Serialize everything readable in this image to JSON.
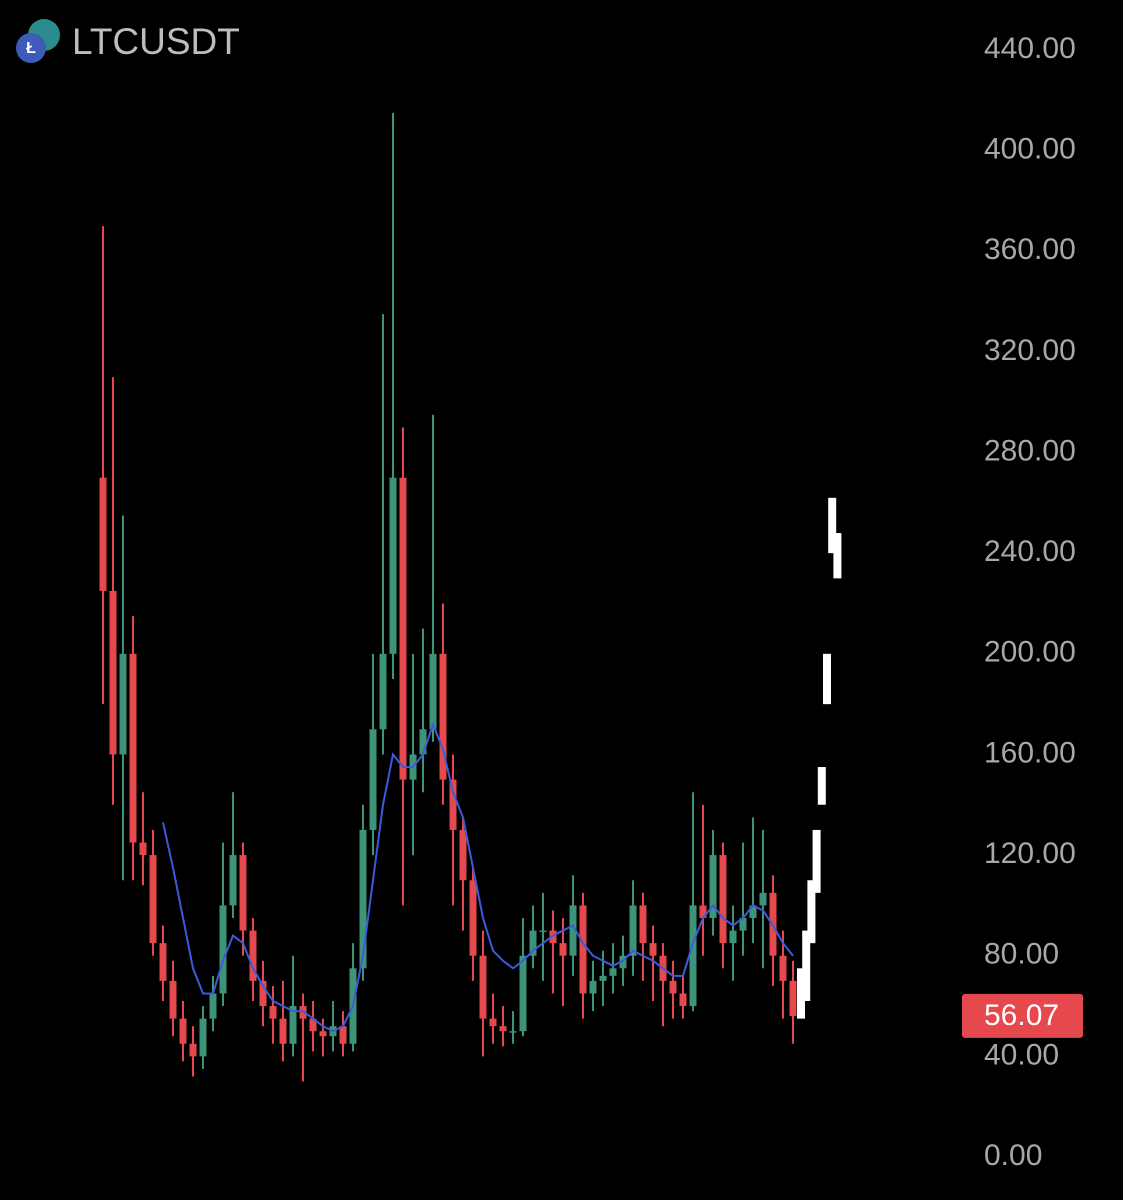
{
  "chart_data": {
    "type": "candlestick",
    "title": "LTCUSDT",
    "ylim": [
      0,
      440
    ],
    "yticks": [
      {
        "value": 0,
        "label": "0.00"
      },
      {
        "value": 40,
        "label": "40.00"
      },
      {
        "value": 80,
        "label": "80.00"
      },
      {
        "value": 120,
        "label": "120.00"
      },
      {
        "value": 160,
        "label": "160.00"
      },
      {
        "value": 200,
        "label": "200.00"
      },
      {
        "value": 240,
        "label": "240.00"
      },
      {
        "value": 280,
        "label": "280.00"
      },
      {
        "value": 320,
        "label": "320.00"
      },
      {
        "value": 360,
        "label": "360.00"
      },
      {
        "value": 400,
        "label": "400.00"
      },
      {
        "value": 440,
        "label": "440.00"
      }
    ],
    "up_color": "#3e9478",
    "down_color": "#e5484d",
    "open": [
      270,
      225,
      160,
      200,
      125,
      120,
      85,
      70,
      55,
      45,
      40,
      55,
      65,
      100,
      120,
      90,
      70,
      60,
      55,
      45,
      60,
      55,
      50,
      48,
      52,
      45,
      75,
      130,
      170,
      200,
      270,
      150,
      160,
      170,
      200,
      150,
      130,
      110,
      80,
      55,
      52,
      50,
      50,
      80,
      90,
      90,
      85,
      80,
      100,
      65,
      70,
      72,
      75,
      80,
      100,
      85,
      80,
      70,
      65,
      60,
      100,
      95,
      120,
      85,
      90,
      95,
      100,
      105,
      80,
      70
    ],
    "high": [
      370,
      310,
      255,
      215,
      145,
      130,
      92,
      78,
      62,
      52,
      60,
      72,
      125,
      145,
      125,
      95,
      78,
      68,
      70,
      80,
      65,
      62,
      55,
      62,
      58,
      85,
      140,
      200,
      335,
      415,
      290,
      200,
      210,
      295,
      220,
      160,
      135,
      115,
      90,
      65,
      60,
      58,
      95,
      100,
      105,
      98,
      95,
      112,
      105,
      78,
      82,
      85,
      88,
      110,
      105,
      92,
      85,
      78,
      72,
      145,
      140,
      130,
      125,
      100,
      125,
      135,
      130,
      112,
      90,
      78
    ],
    "low": [
      180,
      140,
      110,
      110,
      108,
      80,
      62,
      48,
      38,
      32,
      35,
      50,
      60,
      95,
      80,
      62,
      52,
      45,
      38,
      40,
      30,
      42,
      40,
      42,
      40,
      42,
      70,
      120,
      160,
      190,
      100,
      120,
      145,
      165,
      140,
      100,
      90,
      70,
      40,
      45,
      44,
      45,
      48,
      75,
      70,
      65,
      60,
      72,
      55,
      58,
      60,
      65,
      68,
      72,
      70,
      62,
      52,
      55,
      55,
      58,
      80,
      88,
      75,
      70,
      80,
      85,
      75,
      68,
      55,
      45
    ],
    "close": [
      225,
      160,
      200,
      125,
      120,
      85,
      70,
      55,
      45,
      40,
      55,
      65,
      100,
      120,
      90,
      70,
      60,
      55,
      45,
      60,
      55,
      50,
      48,
      52,
      45,
      75,
      130,
      170,
      200,
      270,
      150,
      160,
      170,
      200,
      150,
      130,
      110,
      80,
      55,
      52,
      50,
      50,
      80,
      90,
      90,
      85,
      80,
      100,
      65,
      70,
      72,
      75,
      80,
      100,
      85,
      80,
      70,
      65,
      60,
      100,
      95,
      120,
      85,
      90,
      95,
      100,
      105,
      80,
      70,
      56.07
    ],
    "ma": {
      "color": "#3d5bd9",
      "values": [
        null,
        null,
        null,
        null,
        null,
        null,
        133,
        115,
        95,
        75,
        65,
        65,
        78,
        88,
        85,
        75,
        68,
        62,
        60,
        58,
        58,
        55,
        52,
        50,
        52,
        60,
        80,
        110,
        140,
        160,
        155,
        155,
        160,
        172,
        162,
        145,
        135,
        115,
        95,
        82,
        78,
        75,
        78,
        82,
        85,
        88,
        90,
        92,
        85,
        80,
        78,
        76,
        78,
        82,
        80,
        78,
        75,
        72,
        72,
        85,
        95,
        100,
        95,
        92,
        95,
        100,
        98,
        92,
        85,
        80
      ]
    },
    "projection": {
      "color": "#ffffff",
      "low": [
        55,
        62,
        85,
        105,
        140,
        180,
        240,
        230
      ],
      "high": [
        75,
        90,
        110,
        130,
        155,
        200,
        262,
        248
      ]
    },
    "last_price": 56.07
  }
}
